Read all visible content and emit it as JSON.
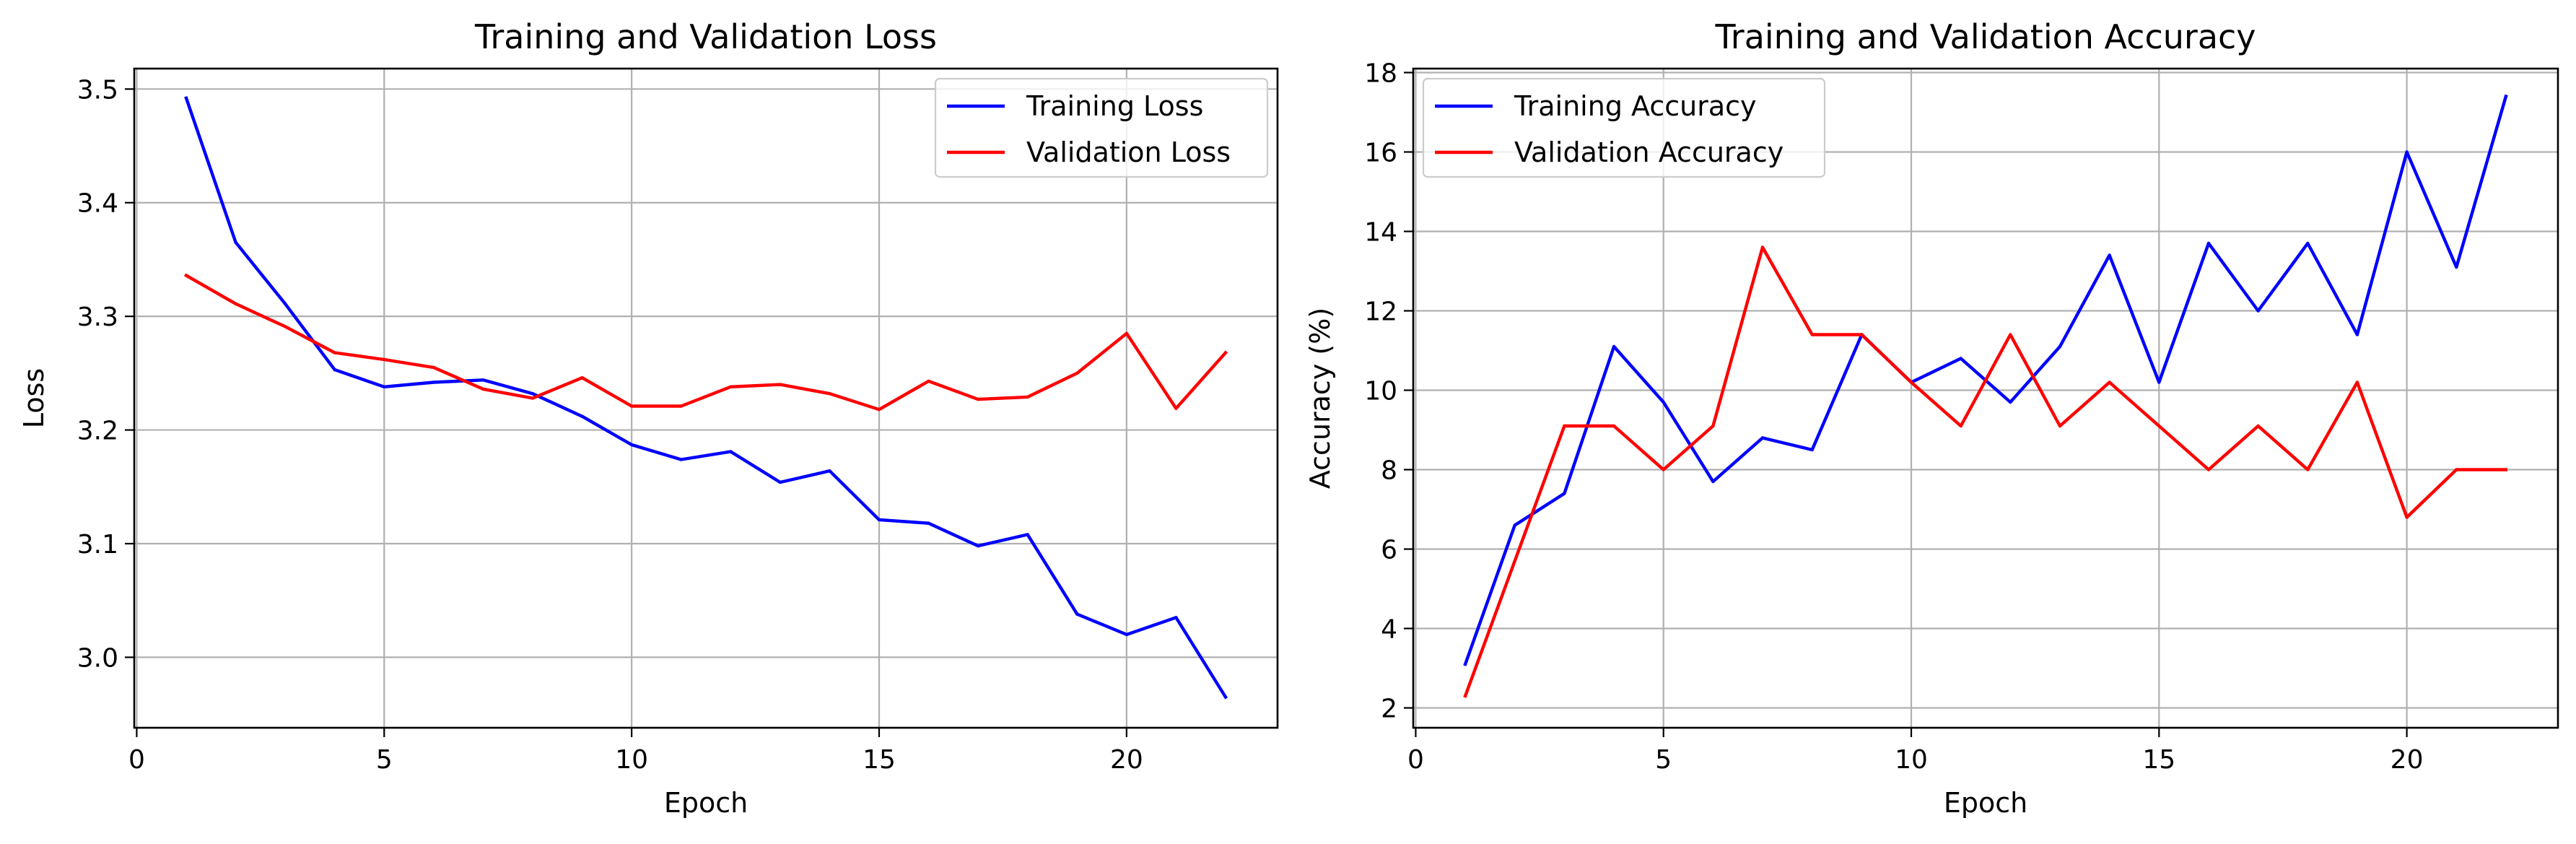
{
  "chart_data": [
    {
      "type": "line",
      "title": "Training and Validation Loss",
      "xlabel": "Epoch",
      "ylabel": "Loss",
      "xlim": [
        -0.05,
        23.05
      ],
      "ylim": [
        2.938,
        3.518
      ],
      "xticks": [
        0,
        5,
        10,
        15,
        20
      ],
      "yticks": [
        3.0,
        3.1,
        3.2,
        3.3,
        3.4,
        3.5
      ],
      "ytick_decimals": 1,
      "grid": true,
      "legend_position": "upper right",
      "x": [
        1,
        2,
        3,
        4,
        5,
        6,
        7,
        8,
        9,
        10,
        11,
        12,
        13,
        14,
        15,
        16,
        17,
        18,
        19,
        20,
        21,
        22
      ],
      "series": [
        {
          "name": "Training Loss",
          "color": "#0000ff",
          "values": [
            3.492,
            3.365,
            3.311,
            3.253,
            3.238,
            3.242,
            3.244,
            3.232,
            3.212,
            3.187,
            3.174,
            3.181,
            3.154,
            3.164,
            3.121,
            3.118,
            3.098,
            3.108,
            3.038,
            3.02,
            3.035,
            2.965
          ]
        },
        {
          "name": "Validation Loss",
          "color": "#ff0000",
          "values": [
            3.336,
            3.311,
            3.291,
            3.268,
            3.262,
            3.255,
            3.236,
            3.228,
            3.246,
            3.221,
            3.221,
            3.238,
            3.24,
            3.232,
            3.218,
            3.243,
            3.227,
            3.229,
            3.25,
            3.285,
            3.219,
            3.268
          ]
        }
      ]
    },
    {
      "type": "line",
      "title": "Training and Validation Accuracy",
      "xlabel": "Epoch",
      "ylabel": "Accuracy (%)",
      "xlim": [
        -0.05,
        23.05
      ],
      "ylim": [
        1.5,
        18.1
      ],
      "xticks": [
        0,
        5,
        10,
        15,
        20
      ],
      "yticks": [
        2,
        4,
        6,
        8,
        10,
        12,
        14,
        16,
        18
      ],
      "ytick_decimals": 0,
      "grid": true,
      "legend_position": "upper left",
      "x": [
        1,
        2,
        3,
        4,
        5,
        6,
        7,
        8,
        9,
        10,
        11,
        12,
        13,
        14,
        15,
        16,
        17,
        18,
        19,
        20,
        21,
        22
      ],
      "series": [
        {
          "name": "Training Accuracy",
          "color": "#0000ff",
          "values": [
            3.1,
            6.6,
            7.4,
            11.1,
            9.7,
            7.7,
            8.8,
            8.5,
            11.4,
            10.2,
            10.8,
            9.7,
            11.1,
            13.4,
            10.2,
            13.7,
            12.0,
            13.7,
            11.4,
            16.0,
            13.1,
            17.4
          ]
        },
        {
          "name": "Validation Accuracy",
          "color": "#ff0000",
          "values": [
            2.3,
            5.7,
            9.1,
            9.1,
            8.0,
            9.1,
            13.6,
            11.4,
            11.4,
            10.2,
            9.1,
            11.4,
            9.1,
            10.2,
            9.1,
            8.0,
            9.1,
            8.0,
            10.2,
            6.8,
            8.0,
            8.0
          ]
        }
      ]
    }
  ]
}
